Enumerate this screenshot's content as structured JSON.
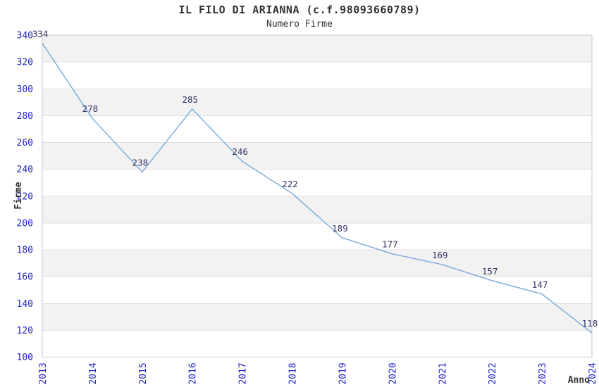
{
  "chart_data": {
    "type": "line",
    "title": "IL FILO DI ARIANNA (c.f.98093660789)",
    "subtitle": "Numero Firme",
    "xlabel": "Anno",
    "ylabel": "Firme",
    "categories": [
      "2013",
      "2014",
      "2015",
      "2016",
      "2017",
      "2018",
      "2019",
      "2020",
      "2021",
      "2022",
      "2023",
      "2024"
    ],
    "series": [
      {
        "name": "Numero Firme",
        "values": [
          334,
          278,
          238,
          285,
          246,
          222,
          189,
          177,
          169,
          157,
          147,
          118
        ]
      }
    ],
    "ylim": [
      100,
      340
    ],
    "ytick_step": 20,
    "yticks": [
      340,
      320,
      300,
      280,
      260,
      240,
      220,
      200,
      180,
      160,
      140,
      120,
      100
    ],
    "grid": "horizontal-bands-alternating",
    "legend": "none",
    "marker": "none",
    "colors": {
      "line": "#7aa9dc",
      "tick_label": "#2424cc",
      "data_label": "#333366",
      "band": "#f2f2f2",
      "gridline": "#e0e0e0",
      "border": "#c9c9c9",
      "title": "#333333",
      "axis_title": "#333333",
      "background": "#ffffff"
    }
  }
}
